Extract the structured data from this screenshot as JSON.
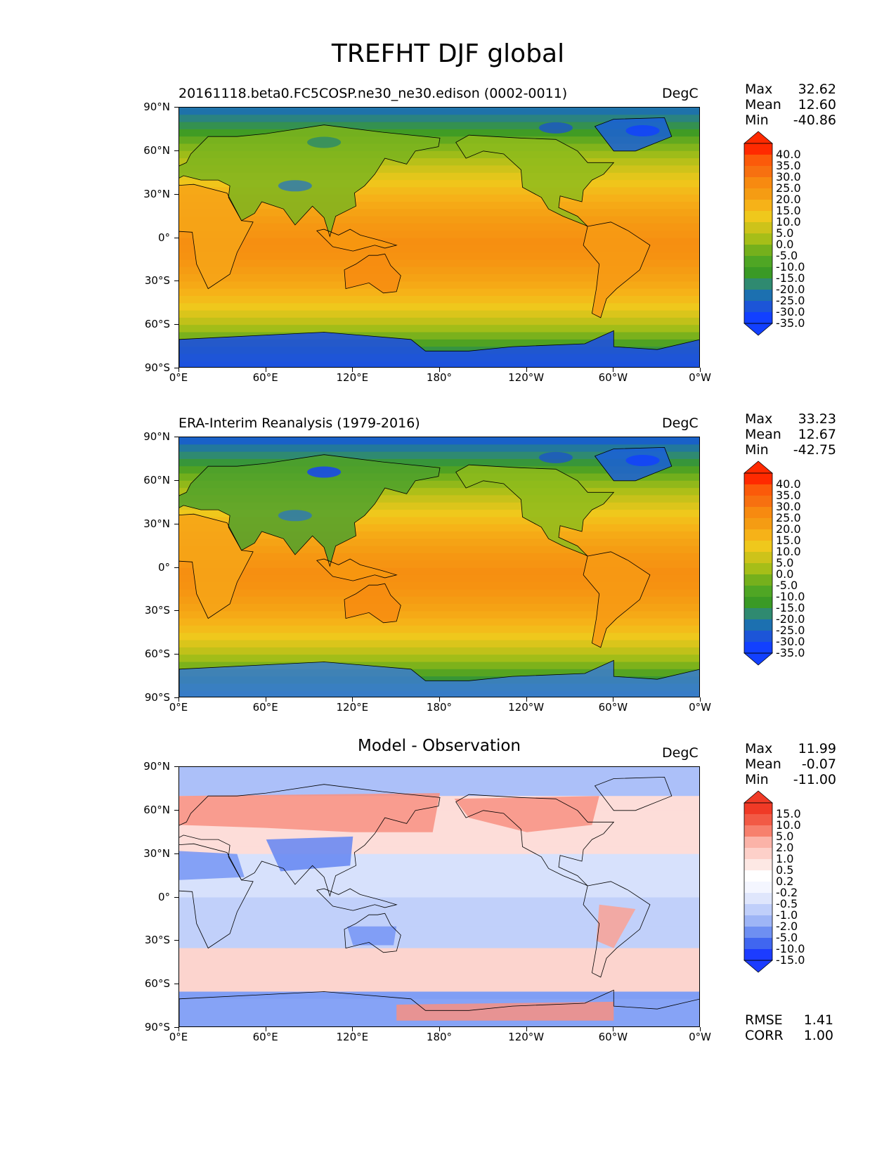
{
  "figure": {
    "title": "TREFHT DJF global"
  },
  "axes": {
    "yticks": [
      "90°N",
      "60°N",
      "30°N",
      "0°",
      "30°S",
      "60°S",
      "90°S"
    ],
    "xticks": [
      "0°E",
      "60°E",
      "120°E",
      "180°",
      "120°W",
      "60°W",
      "0°W"
    ]
  },
  "panels": [
    {
      "title": "20161118.beta0.FC5COSP.ne30_ne30.edison (0002-0011)",
      "unit": "DegC",
      "stats": {
        "max_label": "Max",
        "max": "32.62",
        "mean_label": "Mean",
        "mean": "12.60",
        "min_label": "Min",
        "min": "-40.86"
      },
      "colorbar": [
        "40.0",
        "35.0",
        "30.0",
        "25.0",
        "20.0",
        "15.0",
        "10.0",
        "5.0",
        "0.0",
        "-5.0",
        "-10.0",
        "-15.0",
        "-20.0",
        "-25.0",
        "-30.0",
        "-35.0"
      ]
    },
    {
      "title": "ERA-Interim Reanalysis (1979-2016)",
      "unit": "DegC",
      "stats": {
        "max_label": "Max",
        "max": "33.23",
        "mean_label": "Mean",
        "mean": "12.67",
        "min_label": "Min",
        "min": "-42.75"
      },
      "colorbar": [
        "40.0",
        "35.0",
        "30.0",
        "25.0",
        "20.0",
        "15.0",
        "10.0",
        "5.0",
        "0.0",
        "-5.0",
        "-10.0",
        "-15.0",
        "-20.0",
        "-25.0",
        "-30.0",
        "-35.0"
      ]
    },
    {
      "title": "Model - Observation",
      "unit": "DegC",
      "stats": {
        "max_label": "Max",
        "max": "11.99",
        "mean_label": "Mean",
        "mean": "-0.07",
        "min_label": "Min",
        "min": "-11.00"
      },
      "colorbar": [
        "15.0",
        "10.0",
        "5.0",
        "2.0",
        "1.0",
        "0.5",
        "0.2",
        "-0.2",
        "-0.5",
        "-1.0",
        "-2.0",
        "-5.0",
        "-10.0",
        "-15.0"
      ],
      "footer": {
        "rmse_label": "RMSE",
        "rmse": "1.41",
        "corr_label": "CORR",
        "corr": "1.00"
      }
    }
  ],
  "chart_data": [
    {
      "type": "heatmap",
      "title": "20161118.beta0.FC5COSP.ne30_ne30.edison (0002-0011)",
      "units": "DegC",
      "x_ticks": [
        "0°E",
        "60°E",
        "120°E",
        "180°",
        "120°W",
        "60°W",
        "0°W"
      ],
      "y_ticks": [
        "90°N",
        "60°N",
        "30°N",
        "0°",
        "30°S",
        "60°S",
        "90°S"
      ],
      "colorbar_levels": [
        -35,
        -30,
        -25,
        -20,
        -15,
        -10,
        -5,
        0,
        5,
        10,
        15,
        20,
        25,
        30,
        35,
        40
      ],
      "max": 32.62,
      "mean": 12.6,
      "min": -40.86
    },
    {
      "type": "heatmap",
      "title": "ERA-Interim Reanalysis (1979-2016)",
      "units": "DegC",
      "x_ticks": [
        "0°E",
        "60°E",
        "120°E",
        "180°",
        "120°W",
        "60°W",
        "0°W"
      ],
      "y_ticks": [
        "90°N",
        "60°N",
        "30°N",
        "0°",
        "30°S",
        "60°S",
        "90°S"
      ],
      "colorbar_levels": [
        -35,
        -30,
        -25,
        -20,
        -15,
        -10,
        -5,
        0,
        5,
        10,
        15,
        20,
        25,
        30,
        35,
        40
      ],
      "max": 33.23,
      "mean": 12.67,
      "min": -42.75
    },
    {
      "type": "heatmap",
      "title": "Model - Observation",
      "units": "DegC",
      "x_ticks": [
        "0°E",
        "60°E",
        "120°E",
        "180°",
        "120°W",
        "60°W",
        "0°W"
      ],
      "y_ticks": [
        "90°N",
        "60°N",
        "30°N",
        "0°",
        "30°S",
        "60°S",
        "90°S"
      ],
      "colorbar_levels": [
        -15,
        -10,
        -5,
        -2,
        -1,
        -0.5,
        -0.2,
        0.2,
        0.5,
        1,
        2,
        5,
        10,
        15
      ],
      "max": 11.99,
      "mean": -0.07,
      "min": -11.0,
      "rmse": 1.41,
      "corr": 1.0
    }
  ]
}
